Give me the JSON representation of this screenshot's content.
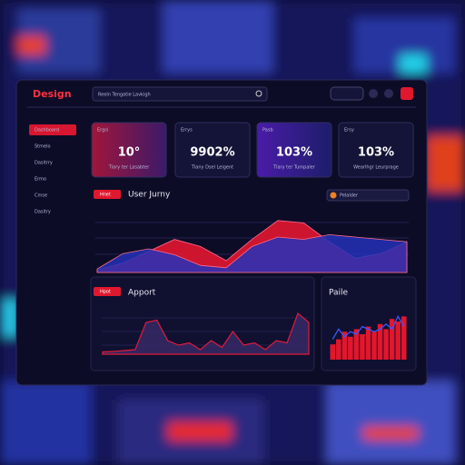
{
  "header": {
    "logo": "Design",
    "search": "Reein Tengatie Lavkigh"
  },
  "sidebar": {
    "items": [
      "Dashboard",
      "Stmelo",
      "Dasitrry",
      "Ermo",
      "Cmse",
      "Dasitry"
    ]
  },
  "cards": [
    {
      "label": "Ergsi",
      "value": "10°",
      "caption": "Tlary ter Lasabter"
    },
    {
      "label": "Errys",
      "value": "9902%",
      "caption": "Tlany Dsel Leigent"
    },
    {
      "label": "Pasb",
      "value": "103%",
      "caption": "Tlary ter Tumpaler"
    },
    {
      "label": "Ersy",
      "value": "103%",
      "caption": "Wearlhgr Leurprage"
    }
  ],
  "journey": {
    "button": "Hnet",
    "title": "User Jurny",
    "dropdown": "Pelalder",
    "series": [
      {
        "color": "#d8162f",
        "values": [
          2,
          8,
          18,
          28,
          22,
          10,
          28,
          44,
          42,
          26,
          12,
          16,
          26
        ]
      },
      {
        "color": "#2431b8",
        "values": [
          3,
          16,
          20,
          15,
          6,
          4,
          22,
          30,
          28,
          32,
          30,
          28,
          26
        ]
      }
    ]
  },
  "report": {
    "button": "Hpot",
    "title": "Apport",
    "color": "#e01a3a",
    "values": [
      5,
      6,
      8,
      10,
      70,
      75,
      30,
      20,
      25,
      10,
      30,
      15,
      50,
      20,
      25,
      10,
      30,
      25,
      90,
      70
    ]
  },
  "side": {
    "title": "Paile",
    "bars": {
      "color": "#e3162b",
      "values": [
        30,
        40,
        55,
        45,
        60,
        50,
        65,
        55,
        70,
        60,
        80,
        75,
        85
      ]
    },
    "line": {
      "color": "#3d57ff",
      "values": [
        40,
        60,
        45,
        55,
        50,
        65,
        60,
        55,
        60,
        70,
        60,
        85,
        65
      ]
    }
  }
}
